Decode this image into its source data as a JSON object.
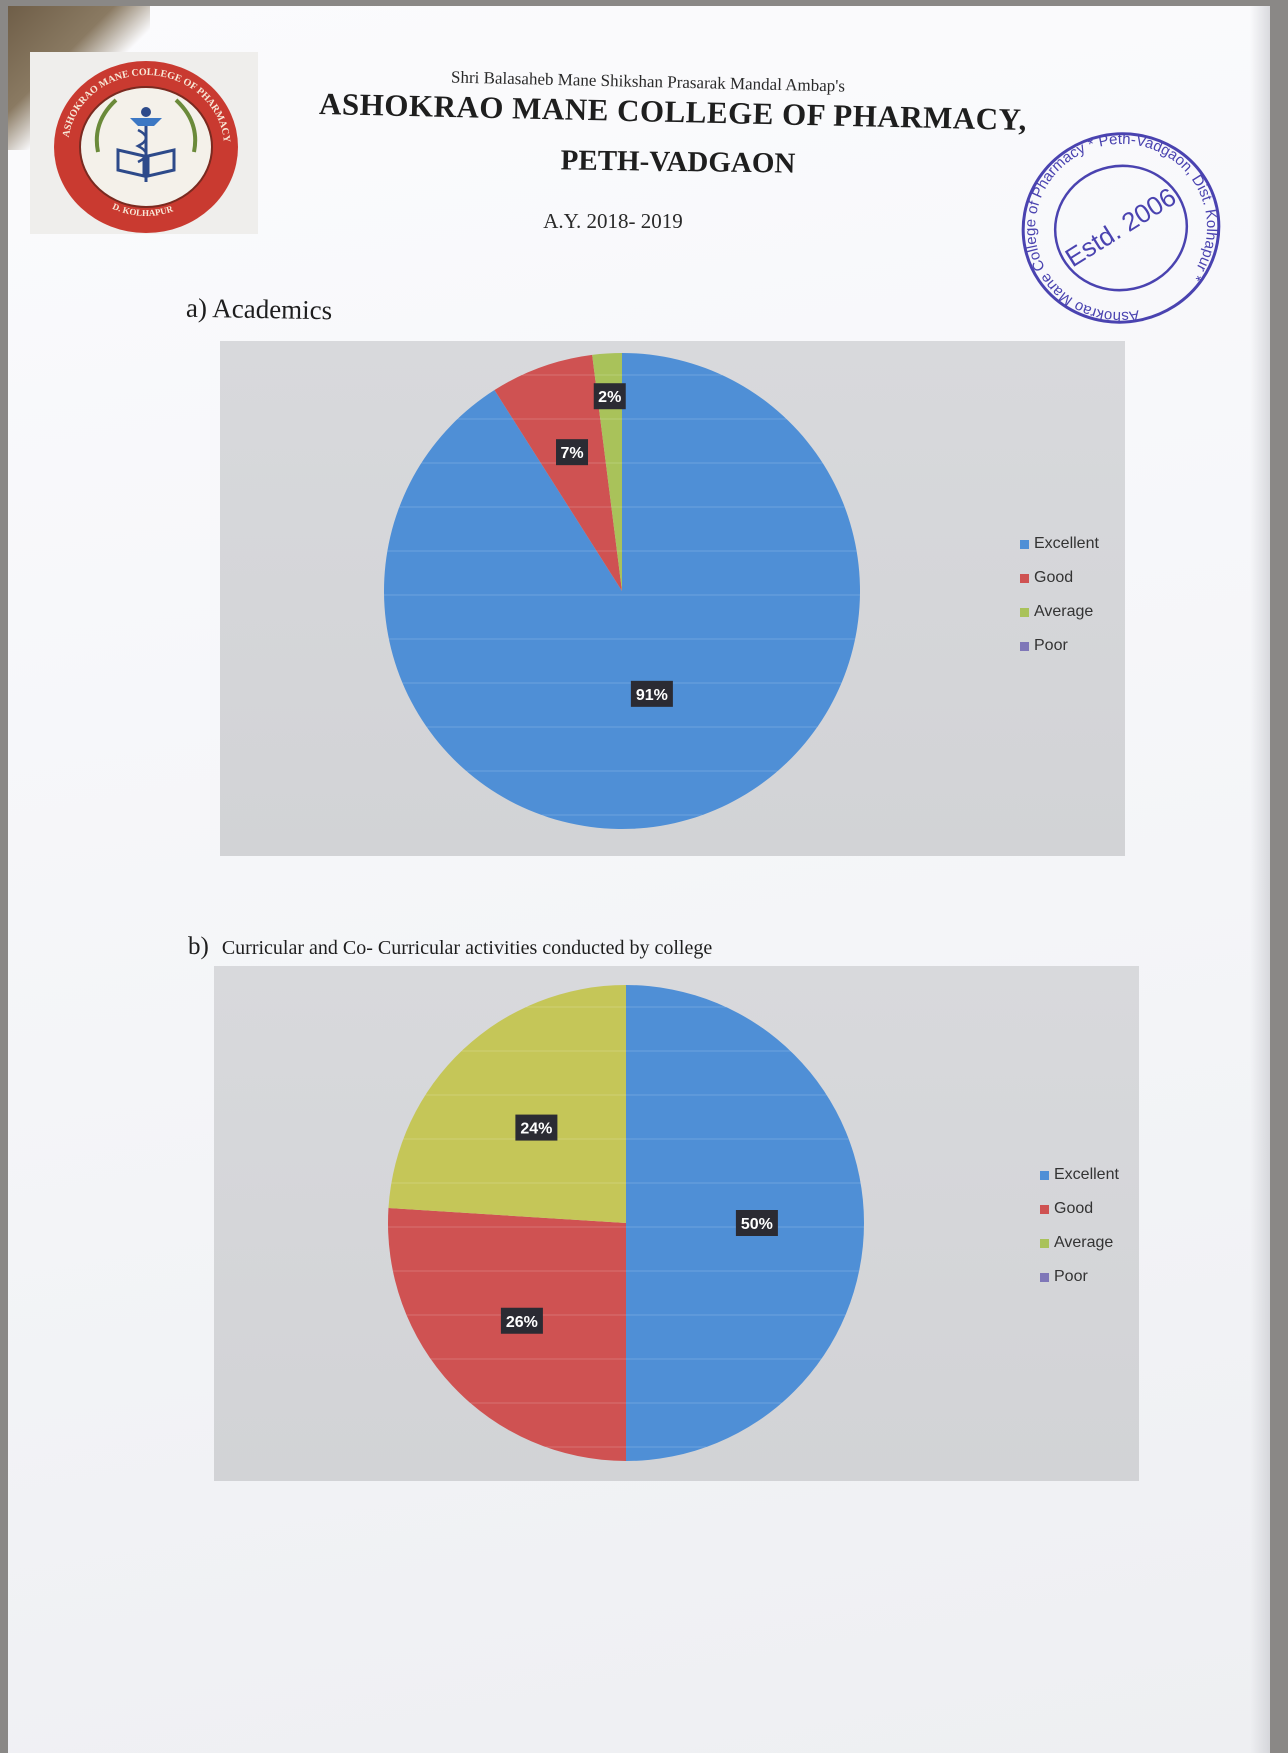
{
  "header": {
    "trust_line": "Shri Balasaheb Mane Shikshan Prasarak Mandal Ambap's",
    "college_name": "ASHOKRAO MANE COLLEGE OF PHARMACY,",
    "place": "PETH-VADGAON",
    "academic_year": "A.Y. 2018- 2019"
  },
  "logo": {
    "ring_text": "ASHOKRAO MANE COLLEGE OF PHARMACY PETH VADGAON",
    "bottom_text": "D. KOLHAPUR"
  },
  "stamp": {
    "ring_text": "Ashokrao Mane College of Pharmacy * Peth-Vadgaon, Dist. Kolhapur *",
    "center_text": "Estd. 2006",
    "color": "#4a43b0"
  },
  "sections": {
    "a": {
      "letter": "a)",
      "title": "Academics"
    },
    "b": {
      "letter": "b)",
      "title": "Curricular and Co- Curricular activities conducted by college"
    }
  },
  "legend": {
    "items": [
      {
        "label": "Excellent",
        "color": "#4f8fd6"
      },
      {
        "label": "Good",
        "color": "#cf5252"
      },
      {
        "label": "Average",
        "color": "#a9c25a"
      },
      {
        "label": "Poor",
        "color": "#7f77b8"
      }
    ]
  },
  "chart_data": [
    {
      "type": "pie",
      "categories": [
        "Excellent",
        "Good",
        "Average",
        "Poor"
      ],
      "values": [
        91,
        7,
        2,
        0
      ],
      "data_labels": [
        "91%",
        "7%",
        "2%",
        ""
      ],
      "colors": [
        "#4f8fd6",
        "#cf5252",
        "#a9c25a",
        "#7f77b8"
      ],
      "legend_position": "right"
    },
    {
      "type": "pie",
      "categories": [
        "Excellent",
        "Good",
        "Average",
        "Poor"
      ],
      "values": [
        50,
        26,
        24,
        0
      ],
      "data_labels": [
        "50%",
        "26%",
        "24%",
        ""
      ],
      "colors": [
        "#4f8fd6",
        "#cf5252",
        "#c5c658",
        "#7f77b8"
      ],
      "legend_position": "right"
    }
  ]
}
